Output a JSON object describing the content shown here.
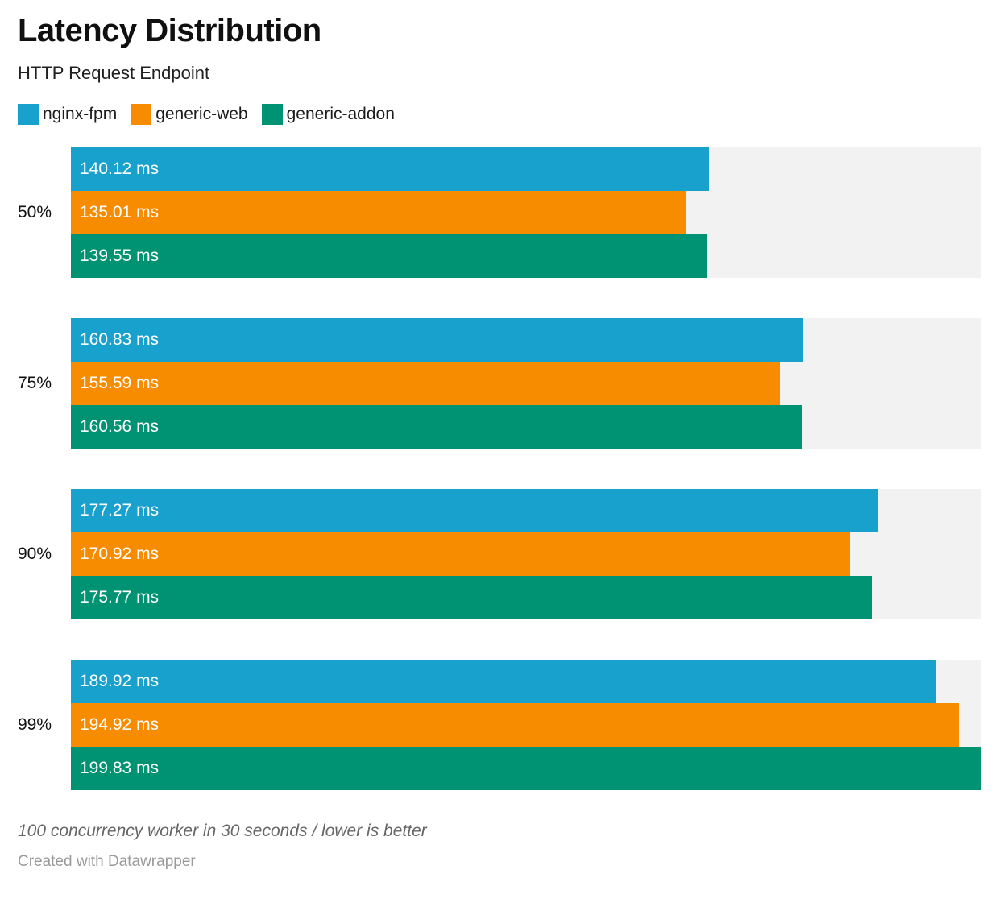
{
  "header": {
    "title": "Latency Distribution",
    "subtitle": "HTTP Request Endpoint"
  },
  "legend": {
    "items": [
      {
        "label": "nginx-fpm",
        "color": "#18A1CD"
      },
      {
        "label": "generic-web",
        "color": "#F88C00"
      },
      {
        "label": "generic-addon",
        "color": "#009373"
      }
    ]
  },
  "chart_data": {
    "type": "bar",
    "orientation": "horizontal",
    "title": "Latency Distribution",
    "subtitle": "HTTP Request Endpoint",
    "unit": "ms",
    "categories": [
      "50%",
      "75%",
      "90%",
      "99%"
    ],
    "series": [
      {
        "name": "nginx-fpm",
        "color": "#18A1CD",
        "values": [
          140.12,
          160.83,
          177.27,
          189.92
        ]
      },
      {
        "name": "generic-web",
        "color": "#F88C00",
        "values": [
          135.01,
          155.59,
          170.92,
          194.92
        ]
      },
      {
        "name": "generic-addon",
        "color": "#009373",
        "values": [
          139.55,
          160.56,
          175.77,
          199.83
        ]
      }
    ],
    "xlim": [
      0,
      199.83
    ],
    "grid": false,
    "legend_position": "top",
    "value_labels_inside_bars": true
  },
  "colors": {
    "track": "#F2F2F2",
    "bar_label_text": "#FFFFFF"
  },
  "footer": {
    "note": "100 concurrency worker in 30 seconds / lower is better",
    "credit": "Created with Datawrapper"
  }
}
